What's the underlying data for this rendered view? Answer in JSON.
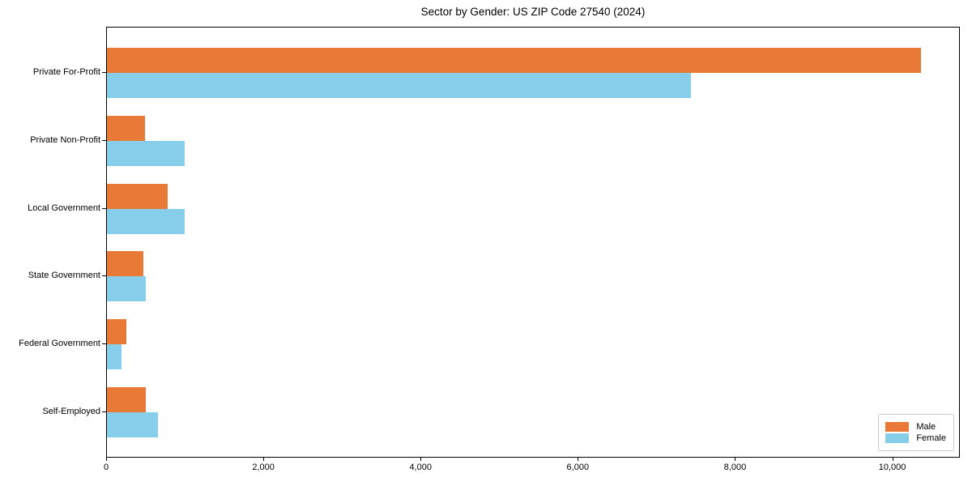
{
  "chart_data": {
    "type": "bar",
    "orientation": "horizontal",
    "title": "Sector by Gender: US ZIP Code 27540 (2024)",
    "categories": [
      "Private For-Profit",
      "Private Non-Profit",
      "Local Government",
      "State Government",
      "Federal Government",
      "Self-Employed"
    ],
    "series": [
      {
        "name": "Male",
        "color": "#E97937",
        "values": [
          10350,
          480,
          775,
          460,
          250,
          495
        ]
      },
      {
        "name": "Female",
        "color": "#87CEEB",
        "values": [
          7430,
          990,
          990,
          495,
          190,
          650
        ]
      }
    ],
    "xlabel": "",
    "ylabel": "",
    "xlim": [
      0,
      10860
    ],
    "x_ticks": [
      0,
      2000,
      4000,
      6000,
      8000,
      10000
    ],
    "x_tick_labels": [
      "0",
      "2,000",
      "4,000",
      "6,000",
      "8,000",
      "10,000"
    ],
    "grid": false,
    "legend_position": "lower right",
    "legend_entries": [
      "Male",
      "Female"
    ]
  }
}
